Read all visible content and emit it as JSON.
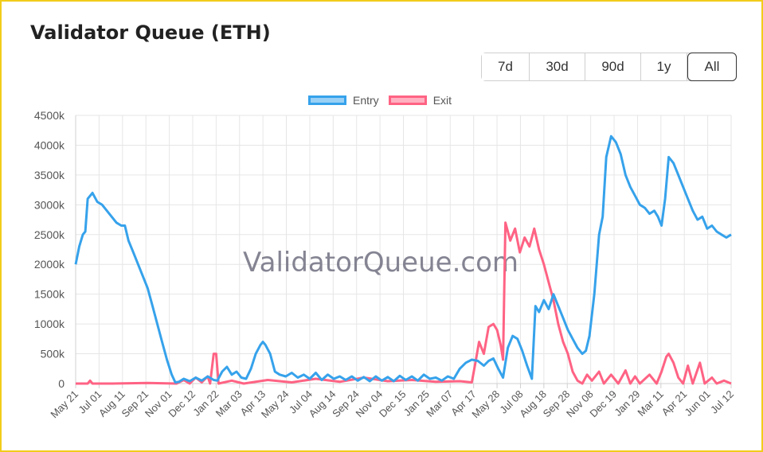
{
  "title": "Validator Queue (ETH)",
  "range_buttons": [
    "7d",
    "30d",
    "90d",
    "1y",
    "All"
  ],
  "active_range": "All",
  "watermark": "ValidatorQueue.com",
  "colors": {
    "entry": "#36a2eb",
    "entry_fill": "#9ad0f5",
    "exit": "#ff6384",
    "exit_fill": "#ffb1c1",
    "border": "#f2cc1a",
    "grid": "#e6e6e6"
  },
  "chart_data": {
    "type": "line",
    "legend": {
      "position": "top",
      "entries": [
        "Entry",
        "Exit"
      ]
    },
    "grid": true,
    "ylim": [
      0,
      4500000
    ],
    "y_ticks": [
      {
        "value": 0,
        "label": "0"
      },
      {
        "value": 500000,
        "label": "500k"
      },
      {
        "value": 1000000,
        "label": "1000k"
      },
      {
        "value": 1500000,
        "label": "1500k"
      },
      {
        "value": 2000000,
        "label": "2000k"
      },
      {
        "value": 2500000,
        "label": "2500k"
      },
      {
        "value": 3000000,
        "label": "3000k"
      },
      {
        "value": 3500000,
        "label": "3500k"
      },
      {
        "value": 4000000,
        "label": "4000k"
      },
      {
        "value": 4500000,
        "label": "4500k"
      }
    ],
    "x_ticks": [
      "May 21",
      "Jul 01",
      "Aug 11",
      "Sep 21",
      "Nov 01",
      "Dec 12",
      "Jan 22",
      "Mar 03",
      "Apr 13",
      "May 24",
      "Jul 04",
      "Aug 14",
      "Sep 24",
      "Nov 04",
      "Dec 15",
      "Jan 25",
      "Mar 07",
      "Apr 17",
      "May 28",
      "Jul 08",
      "Aug 18",
      "Sep 28",
      "Nov 08",
      "Dec 19",
      "Jan 29",
      "Mar 11",
      "Apr 21",
      "Jun 01",
      "Jul 12"
    ],
    "series": [
      {
        "name": "Entry",
        "points": [
          [
            0,
            2000000
          ],
          [
            3,
            2300000
          ],
          [
            6,
            2500000
          ],
          [
            8,
            2550000
          ],
          [
            10,
            3100000
          ],
          [
            14,
            3200000
          ],
          [
            18,
            3050000
          ],
          [
            22,
            3000000
          ],
          [
            26,
            2900000
          ],
          [
            30,
            2800000
          ],
          [
            34,
            2700000
          ],
          [
            38,
            2650000
          ],
          [
            41,
            2650000
          ],
          [
            44,
            2400000
          ],
          [
            48,
            2200000
          ],
          [
            52,
            2000000
          ],
          [
            56,
            1800000
          ],
          [
            60,
            1600000
          ],
          [
            64,
            1300000
          ],
          [
            68,
            1000000
          ],
          [
            72,
            700000
          ],
          [
            76,
            400000
          ],
          [
            80,
            150000
          ],
          [
            83,
            20000
          ],
          [
            86,
            30000
          ],
          [
            90,
            80000
          ],
          [
            95,
            40000
          ],
          [
            100,
            100000
          ],
          [
            105,
            50000
          ],
          [
            110,
            120000
          ],
          [
            115,
            60000
          ],
          [
            118,
            50000
          ],
          [
            122,
            200000
          ],
          [
            126,
            280000
          ],
          [
            130,
            150000
          ],
          [
            134,
            200000
          ],
          [
            138,
            100000
          ],
          [
            142,
            80000
          ],
          [
            146,
            250000
          ],
          [
            150,
            500000
          ],
          [
            154,
            650000
          ],
          [
            156,
            700000
          ],
          [
            158,
            650000
          ],
          [
            162,
            500000
          ],
          [
            166,
            200000
          ],
          [
            170,
            150000
          ],
          [
            175,
            120000
          ],
          [
            180,
            180000
          ],
          [
            185,
            100000
          ],
          [
            190,
            150000
          ],
          [
            195,
            80000
          ],
          [
            200,
            180000
          ],
          [
            205,
            60000
          ],
          [
            210,
            150000
          ],
          [
            215,
            80000
          ],
          [
            220,
            120000
          ],
          [
            225,
            60000
          ],
          [
            230,
            120000
          ],
          [
            235,
            50000
          ],
          [
            240,
            110000
          ],
          [
            245,
            40000
          ],
          [
            250,
            120000
          ],
          [
            255,
            50000
          ],
          [
            260,
            110000
          ],
          [
            265,
            40000
          ],
          [
            270,
            130000
          ],
          [
            275,
            60000
          ],
          [
            280,
            120000
          ],
          [
            285,
            50000
          ],
          [
            290,
            150000
          ],
          [
            295,
            80000
          ],
          [
            300,
            100000
          ],
          [
            305,
            50000
          ],
          [
            310,
            120000
          ],
          [
            315,
            80000
          ],
          [
            320,
            250000
          ],
          [
            325,
            350000
          ],
          [
            330,
            400000
          ],
          [
            335,
            380000
          ],
          [
            340,
            300000
          ],
          [
            344,
            380000
          ],
          [
            348,
            420000
          ],
          [
            352,
            250000
          ],
          [
            356,
            100000
          ],
          [
            360,
            600000
          ],
          [
            364,
            800000
          ],
          [
            368,
            750000
          ],
          [
            372,
            550000
          ],
          [
            376,
            300000
          ],
          [
            380,
            80000
          ],
          [
            383,
            1300000
          ],
          [
            386,
            1200000
          ],
          [
            390,
            1400000
          ],
          [
            394,
            1250000
          ],
          [
            398,
            1500000
          ],
          [
            402,
            1300000
          ],
          [
            406,
            1100000
          ],
          [
            410,
            900000
          ],
          [
            414,
            750000
          ],
          [
            418,
            600000
          ],
          [
            422,
            500000
          ],
          [
            425,
            550000
          ],
          [
            428,
            800000
          ],
          [
            432,
            1500000
          ],
          [
            436,
            2500000
          ],
          [
            439,
            2800000
          ],
          [
            442,
            3800000
          ],
          [
            446,
            4150000
          ],
          [
            450,
            4050000
          ],
          [
            454,
            3850000
          ],
          [
            458,
            3500000
          ],
          [
            462,
            3300000
          ],
          [
            466,
            3150000
          ],
          [
            470,
            3000000
          ],
          [
            474,
            2950000
          ],
          [
            478,
            2850000
          ],
          [
            482,
            2900000
          ],
          [
            485,
            2800000
          ],
          [
            488,
            2650000
          ],
          [
            491,
            3100000
          ],
          [
            494,
            3800000
          ],
          [
            498,
            3700000
          ],
          [
            502,
            3500000
          ],
          [
            506,
            3300000
          ],
          [
            510,
            3100000
          ],
          [
            514,
            2900000
          ],
          [
            518,
            2750000
          ],
          [
            522,
            2800000
          ],
          [
            526,
            2600000
          ],
          [
            530,
            2650000
          ],
          [
            534,
            2550000
          ],
          [
            538,
            2500000
          ],
          [
            542,
            2450000
          ],
          [
            546,
            2500000
          ]
        ]
      },
      {
        "name": "Exit",
        "points": [
          [
            0,
            0
          ],
          [
            10,
            0
          ],
          [
            12,
            50000
          ],
          [
            14,
            0
          ],
          [
            30,
            0
          ],
          [
            60,
            10000
          ],
          [
            84,
            0
          ],
          [
            90,
            60000
          ],
          [
            95,
            0
          ],
          [
            100,
            100000
          ],
          [
            105,
            20000
          ],
          [
            110,
            120000
          ],
          [
            112,
            0
          ],
          [
            115,
            500000
          ],
          [
            117,
            500000
          ],
          [
            119,
            0
          ],
          [
            130,
            50000
          ],
          [
            140,
            0
          ],
          [
            160,
            60000
          ],
          [
            180,
            20000
          ],
          [
            200,
            80000
          ],
          [
            220,
            30000
          ],
          [
            240,
            100000
          ],
          [
            260,
            40000
          ],
          [
            280,
            60000
          ],
          [
            300,
            30000
          ],
          [
            320,
            40000
          ],
          [
            330,
            20000
          ],
          [
            333,
            350000
          ],
          [
            336,
            700000
          ],
          [
            340,
            500000
          ],
          [
            344,
            950000
          ],
          [
            348,
            1000000
          ],
          [
            351,
            900000
          ],
          [
            354,
            650000
          ],
          [
            356,
            400000
          ],
          [
            358,
            2700000
          ],
          [
            362,
            2400000
          ],
          [
            366,
            2600000
          ],
          [
            370,
            2200000
          ],
          [
            374,
            2450000
          ],
          [
            378,
            2300000
          ],
          [
            382,
            2600000
          ],
          [
            386,
            2250000
          ],
          [
            390,
            2000000
          ],
          [
            394,
            1700000
          ],
          [
            398,
            1400000
          ],
          [
            402,
            1000000
          ],
          [
            406,
            700000
          ],
          [
            410,
            500000
          ],
          [
            414,
            200000
          ],
          [
            418,
            50000
          ],
          [
            422,
            0
          ],
          [
            426,
            150000
          ],
          [
            430,
            50000
          ],
          [
            436,
            200000
          ],
          [
            440,
            0
          ],
          [
            446,
            150000
          ],
          [
            452,
            0
          ],
          [
            458,
            220000
          ],
          [
            462,
            0
          ],
          [
            466,
            120000
          ],
          [
            470,
            0
          ],
          [
            478,
            150000
          ],
          [
            484,
            0
          ],
          [
            488,
            200000
          ],
          [
            492,
            450000
          ],
          [
            494,
            500000
          ],
          [
            498,
            350000
          ],
          [
            502,
            100000
          ],
          [
            506,
            0
          ],
          [
            510,
            300000
          ],
          [
            514,
            0
          ],
          [
            520,
            350000
          ],
          [
            524,
            0
          ],
          [
            530,
            100000
          ],
          [
            534,
            0
          ],
          [
            540,
            50000
          ],
          [
            546,
            0
          ]
        ]
      }
    ],
    "x_count": 547
  }
}
